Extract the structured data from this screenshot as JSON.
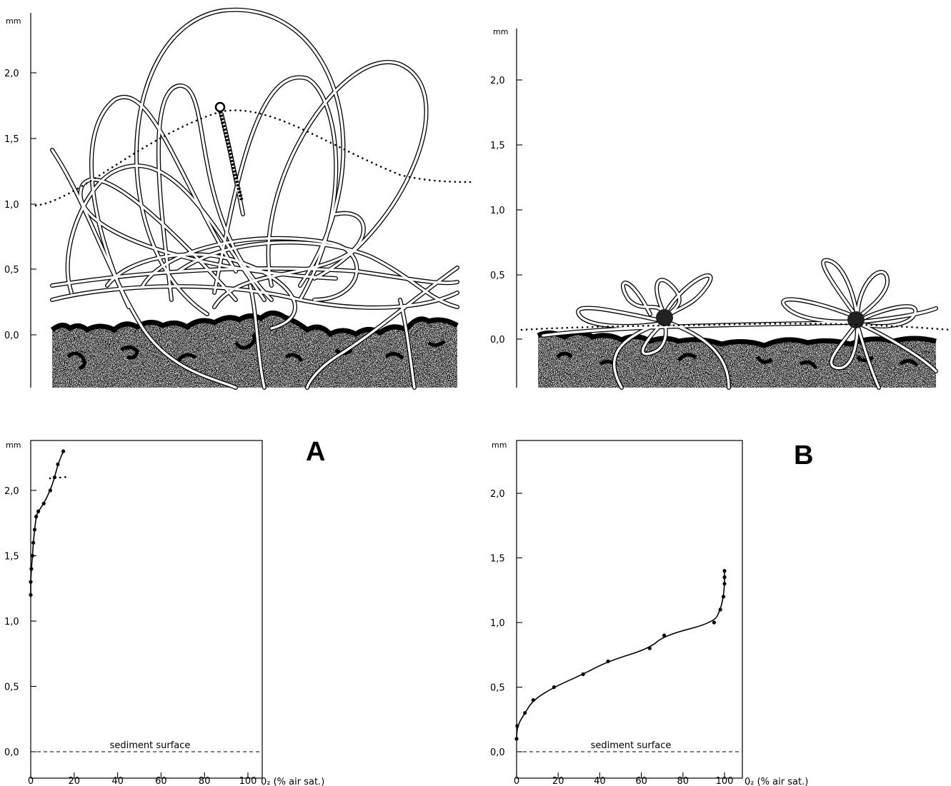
{
  "units": {
    "depth": "mm"
  },
  "y_ticks_labels": [
    "2,0",
    "1,5",
    "1,0",
    "0,5",
    "0,0"
  ],
  "x_ticks_labels": [
    "0",
    "20",
    "40",
    "60",
    "80",
    "100"
  ],
  "x_axis_label": "0₂ (% air sat.)",
  "sediment_label": "sediment surface",
  "panels": [
    {
      "id": "A",
      "label": "A"
    },
    {
      "id": "B",
      "label": "B"
    }
  ],
  "chart_data": [
    {
      "panel": "A",
      "type": "line",
      "xlabel": "0₂ (% air sat.)",
      "ylabel": "mm",
      "xlim": [
        0,
        100
      ],
      "ylim": [
        0,
        2.3
      ],
      "annotation": "sediment surface",
      "x": [
        0,
        0,
        0.3,
        0.8,
        1.2,
        1.8,
        2.5,
        3.5,
        6,
        9,
        11,
        12.5,
        15
      ],
      "y": [
        1.2,
        1.3,
        1.4,
        1.5,
        1.6,
        1.7,
        1.8,
        1.84,
        1.9,
        2.0,
        2.1,
        2.2,
        2.3
      ]
    },
    {
      "panel": "B",
      "type": "line",
      "xlabel": "0₂ (% air sat.)",
      "ylabel": "mm",
      "xlim": [
        0,
        100
      ],
      "ylim": [
        0,
        2.3
      ],
      "annotation": "sediment surface",
      "x": [
        0,
        0.3,
        4,
        8,
        18,
        32,
        44,
        64,
        71,
        95,
        98,
        99.5,
        100,
        100,
        100
      ],
      "y": [
        0.1,
        0.2,
        0.3,
        0.4,
        0.5,
        0.6,
        0.7,
        0.8,
        0.9,
        1.0,
        1.1,
        1.2,
        1.3,
        1.35,
        1.4
      ]
    }
  ]
}
